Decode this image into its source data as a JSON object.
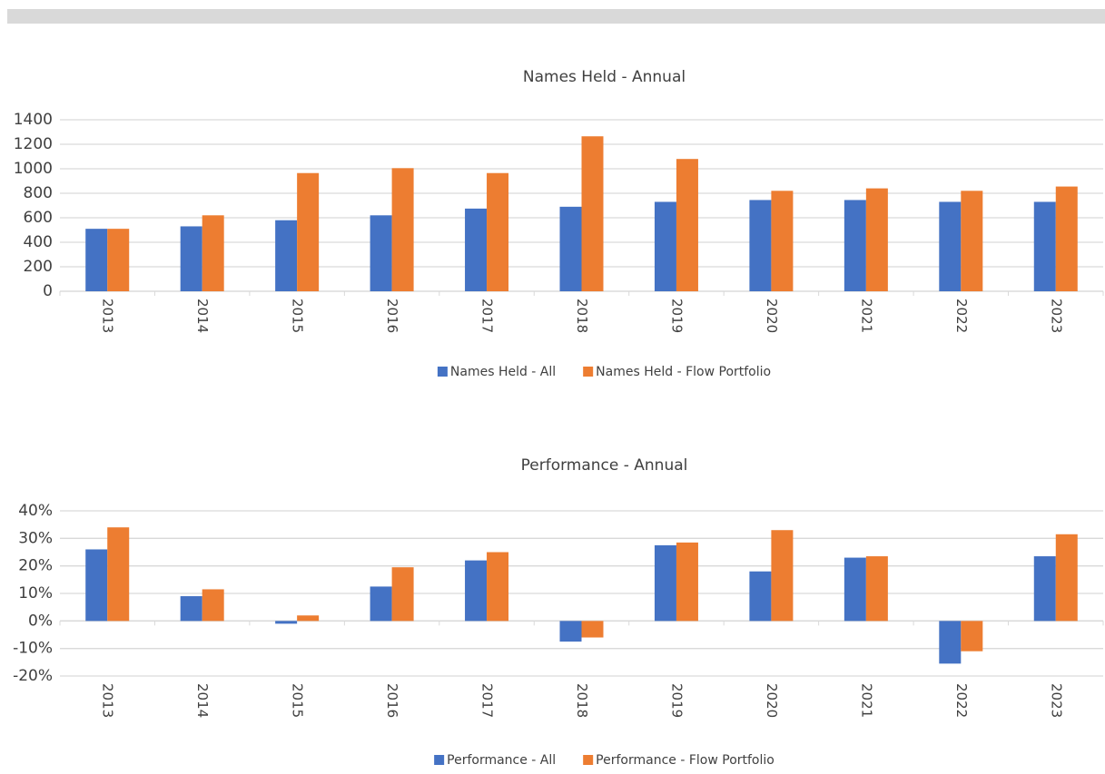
{
  "chart_data": [
    {
      "type": "bar",
      "title": "Names Held - Annual",
      "categories": [
        "2013",
        "2014",
        "2015",
        "2016",
        "2017",
        "2018",
        "2019",
        "2020",
        "2021",
        "2022",
        "2023"
      ],
      "series": [
        {
          "name": "Names Held - All",
          "color": "#4472c4",
          "values": [
            510,
            530,
            580,
            620,
            675,
            690,
            730,
            745,
            745,
            730,
            730
          ]
        },
        {
          "name": "Names Held - Flow Portfolio",
          "color": "#ed7d31",
          "values": [
            510,
            620,
            965,
            1005,
            965,
            1265,
            1080,
            820,
            840,
            820,
            855
          ]
        }
      ],
      "ylim": [
        0,
        1400
      ],
      "yticks": [
        0,
        200,
        400,
        600,
        800,
        1000,
        1200,
        1400
      ],
      "grid": true,
      "legend": "bottom"
    },
    {
      "type": "bar",
      "title": "Performance - Annual",
      "categories": [
        "2013",
        "2014",
        "2015",
        "2016",
        "2017",
        "2018",
        "2019",
        "2020",
        "2021",
        "2022",
        "2023"
      ],
      "series": [
        {
          "name": "Performance - All",
          "color": "#4472c4",
          "values": [
            26,
            9,
            -1,
            12.5,
            22,
            -7.5,
            27.5,
            18,
            23,
            -15.5,
            23.5
          ]
        },
        {
          "name": "Performance - Flow Portfolio",
          "color": "#ed7d31",
          "values": [
            34,
            11.5,
            2,
            19.5,
            25,
            -6,
            28.5,
            33,
            23.5,
            -11,
            31.5
          ]
        }
      ],
      "ylim": [
        -20,
        40
      ],
      "yticks": [
        {
          "value": -20,
          "label": "-20%"
        },
        {
          "value": -10,
          "label": "-10%"
        },
        {
          "value": 0,
          "label": "0%"
        },
        {
          "value": 10,
          "label": "10%"
        },
        {
          "value": 20,
          "label": "20%"
        },
        {
          "value": 30,
          "label": "30%"
        },
        {
          "value": 40,
          "label": "40%"
        }
      ],
      "grid": true,
      "legend": "bottom"
    }
  ]
}
